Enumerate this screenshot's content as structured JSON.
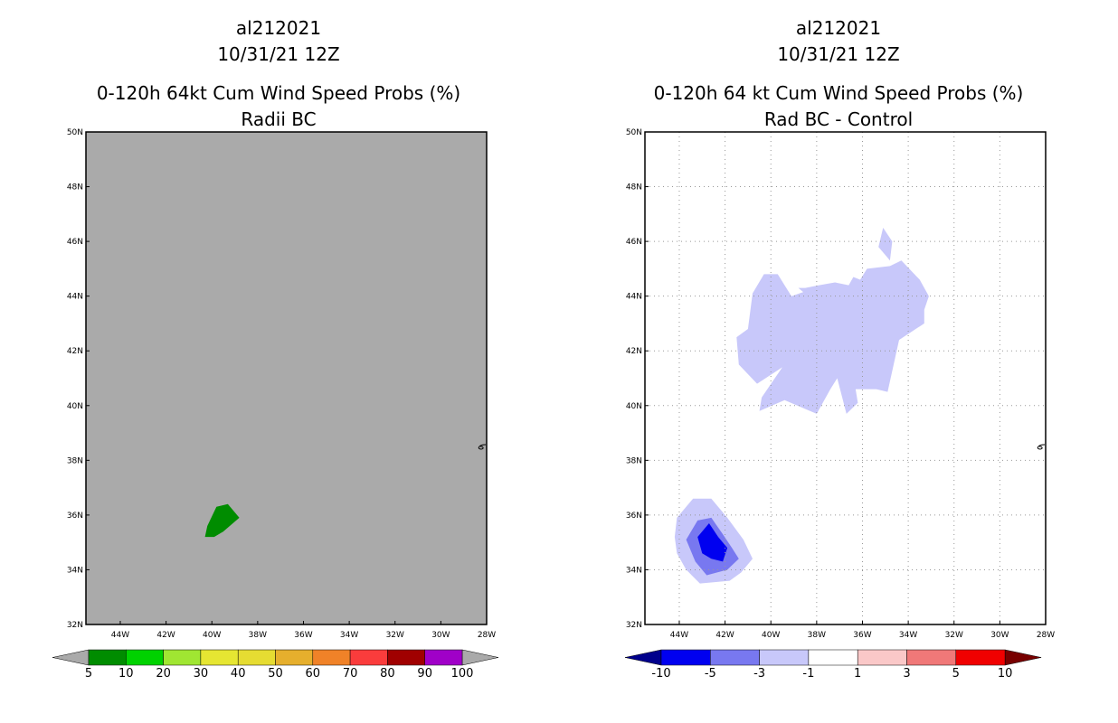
{
  "chart_data": [
    {
      "type": "map-contour",
      "title_lines": [
        "al212021",
        "10/31/21 12Z",
        "0-120h 64kt Cum Wind Speed Probs (%)",
        "Radii BC"
      ],
      "x_ticks": [
        "44W",
        "42W",
        "40W",
        "38W",
        "36W",
        "34W",
        "32W",
        "30W",
        "28W"
      ],
      "y_ticks": [
        "50N",
        "48N",
        "46N",
        "44N",
        "42N",
        "40N",
        "38N",
        "36N",
        "34N",
        "32N"
      ],
      "x_range_deg_lon": [
        -45.5,
        -28
      ],
      "y_range_deg_lat": [
        32,
        50
      ],
      "gridlines": false,
      "background_color": "#aaaaaa",
      "regions": [
        {
          "level": "5-10",
          "color": "#008c00",
          "polygon_lonlat": [
            [
              -40.3,
              35.2
            ],
            [
              -40.2,
              35.6
            ],
            [
              -39.8,
              36.3
            ],
            [
              -39.3,
              36.4
            ],
            [
              -38.8,
              35.9
            ],
            [
              -39.5,
              35.4
            ],
            [
              -39.9,
              35.2
            ]
          ]
        }
      ],
      "colorbar": {
        "labels": [
          "5",
          "10",
          "20",
          "30",
          "40",
          "50",
          "60",
          "70",
          "80",
          "90",
          "100"
        ],
        "colors": [
          "#008c00",
          "#00d200",
          "#a0e632",
          "#e6e632",
          "#e6dc32",
          "#e6af2d",
          "#f08228",
          "#fa3c3c",
          "#a00000",
          "#a000c8"
        ],
        "under_color": "#aaaaaa",
        "over_color": "#aaaaaa"
      }
    },
    {
      "type": "map-contour",
      "title_lines": [
        "al212021",
        "10/31/21 12Z",
        "0-120h 64 kt Cum Wind Speed Probs (%)",
        "Rad BC - Control"
      ],
      "x_ticks": [
        "44W",
        "42W",
        "40W",
        "38W",
        "36W",
        "34W",
        "32W",
        "30W",
        "28W"
      ],
      "y_ticks": [
        "50N",
        "48N",
        "46N",
        "44N",
        "42N",
        "40N",
        "38N",
        "36N",
        "34N",
        "32N"
      ],
      "x_range_deg_lon": [
        -45.5,
        -28
      ],
      "y_range_deg_lat": [
        32,
        50
      ],
      "gridlines": true,
      "background_color": "#ffffff",
      "regions": [
        {
          "level": "-3 to -1",
          "color": "#c8c8fa",
          "polygon_lonlat": [
            [
              -39.5,
              41.4
            ],
            [
              -40.4,
              40.3
            ],
            [
              -40.5,
              39.8
            ],
            [
              -39.4,
              40.2
            ],
            [
              -38.0,
              39.7
            ],
            [
              -37.4,
              40.6
            ],
            [
              -37.1,
              41.0
            ],
            [
              -36.7,
              39.7
            ],
            [
              -36.2,
              40.1
            ],
            [
              -36.3,
              40.6
            ],
            [
              -35.4,
              40.6
            ],
            [
              -34.9,
              40.5
            ],
            [
              -34.4,
              42.4
            ],
            [
              -33.3,
              43.0
            ],
            [
              -33.3,
              43.5
            ],
            [
              -33.1,
              44.0
            ],
            [
              -33.5,
              44.6
            ],
            [
              -34.3,
              45.3
            ],
            [
              -34.8,
              45.1
            ],
            [
              -35.8,
              45.0
            ],
            [
              -36.1,
              44.6
            ],
            [
              -36.4,
              44.7
            ],
            [
              -36.6,
              44.4
            ],
            [
              -37.2,
              44.5
            ],
            [
              -37.9,
              44.4
            ],
            [
              -38.5,
              44.3
            ],
            [
              -38.8,
              44.3
            ],
            [
              -38.1,
              43.8
            ],
            [
              -38.4,
              44.2
            ],
            [
              -39.1,
              44.0
            ],
            [
              -39.7,
              44.8
            ],
            [
              -40.3,
              44.8
            ],
            [
              -40.8,
              44.1
            ],
            [
              -41.0,
              42.8
            ],
            [
              -41.5,
              42.5
            ],
            [
              -41.4,
              41.5
            ],
            [
              -40.6,
              40.8
            ]
          ]
        },
        {
          "level": "-3 to -1",
          "color": "#c8c8fa",
          "polygon_lonlat": [
            [
              -35.1,
              46.5
            ],
            [
              -35.3,
              45.8
            ],
            [
              -34.8,
              45.3
            ],
            [
              -34.7,
              46.0
            ]
          ]
        },
        {
          "level": "-3 to -1",
          "color": "#c8c8fa",
          "polygon_lonlat": [
            [
              -44.2,
              35.2
            ],
            [
              -44.1,
              35.9
            ],
            [
              -43.4,
              36.6
            ],
            [
              -42.6,
              36.6
            ],
            [
              -41.9,
              35.9
            ],
            [
              -41.2,
              35.1
            ],
            [
              -40.8,
              34.4
            ],
            [
              -41.3,
              33.9
            ],
            [
              -41.8,
              33.6
            ],
            [
              -43.1,
              33.5
            ],
            [
              -43.7,
              34.0
            ],
            [
              -44.1,
              34.6
            ]
          ]
        },
        {
          "level": "-5 to -3",
          "color": "#7878f0",
          "polygon_lonlat": [
            [
              -43.7,
              35.1
            ],
            [
              -43.2,
              35.8
            ],
            [
              -42.6,
              35.9
            ],
            [
              -42.1,
              35.3
            ],
            [
              -41.7,
              34.8
            ],
            [
              -41.4,
              34.4
            ],
            [
              -41.9,
              34.0
            ],
            [
              -42.8,
              33.8
            ],
            [
              -43.3,
              34.3
            ]
          ]
        },
        {
          "level": "-10 to -5",
          "color": "#0000f0",
          "polygon_lonlat": [
            [
              -43.2,
              35.2
            ],
            [
              -42.7,
              35.7
            ],
            [
              -42.3,
              35.2
            ],
            [
              -41.9,
              34.8
            ],
            [
              -42.1,
              34.3
            ],
            [
              -42.6,
              34.4
            ],
            [
              -43.0,
              34.6
            ]
          ]
        }
      ],
      "colorbar": {
        "labels": [
          "-10",
          "-5",
          "-3",
          "-1",
          "1",
          "3",
          "5",
          "10"
        ],
        "colors": [
          "#0000f0",
          "#7878f0",
          "#c8c8fa",
          "#ffffff",
          "#fac8c8",
          "#f07878",
          "#f00000"
        ],
        "under_color": "#00008c",
        "over_color": "#780000"
      }
    }
  ]
}
